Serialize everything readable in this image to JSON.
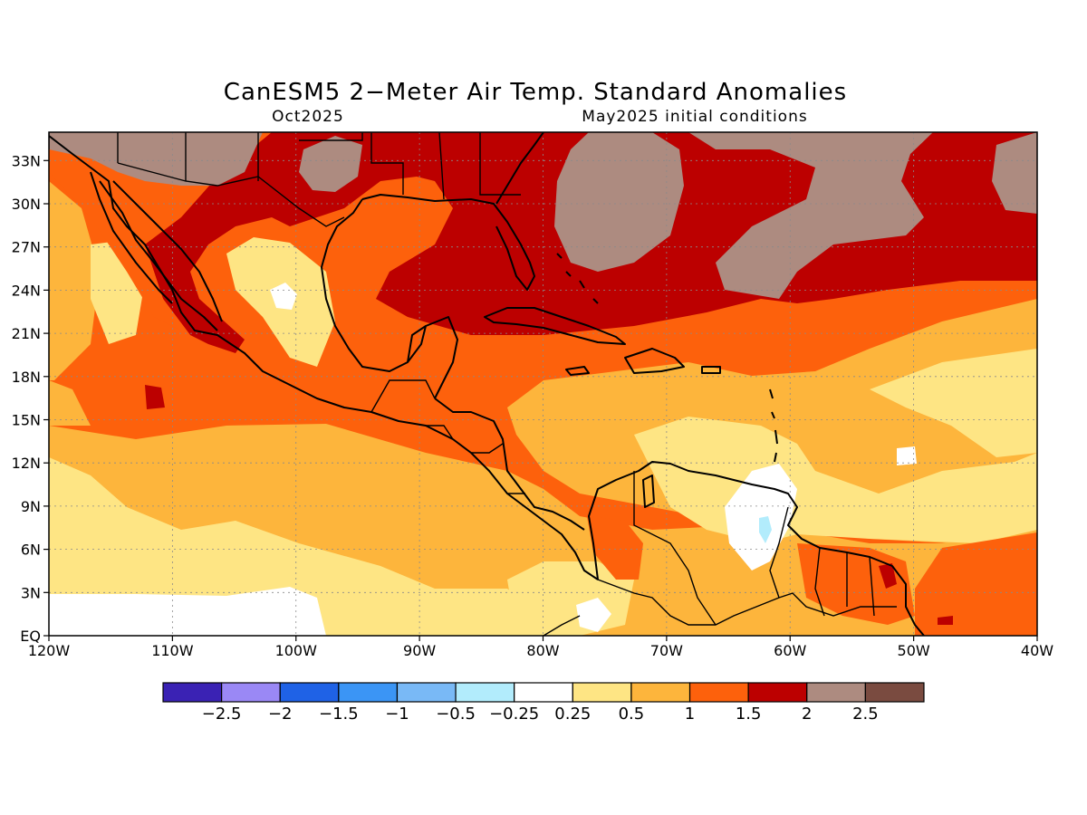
{
  "map": {
    "title": "CanESM5 2−Meter Air Temp. Standard Anomalies",
    "subtitle_left": "Oct2025",
    "subtitle_right": "May2025 initial conditions",
    "lon_ticks": [
      "120W",
      "110W",
      "100W",
      "90W",
      "80W",
      "70W",
      "60W",
      "50W",
      "40W"
    ],
    "lat_ticks": [
      "EQ",
      "3N",
      "6N",
      "9N",
      "12N",
      "15N",
      "18N",
      "21N",
      "24N",
      "27N",
      "30N",
      "33N"
    ],
    "colorbar": {
      "colors": [
        "#3a22b4",
        "#9a88f5",
        "#1f62e6",
        "#3b95f5",
        "#79b9f6",
        "#b2ecfc",
        "#ffffff",
        "#fee584",
        "#fdb53c",
        "#fd610c",
        "#bc0000",
        "#ad8b80",
        "#7a4b40"
      ],
      "labels": [
        "−2.5",
        "−2",
        "−1.5",
        "−1",
        "−0.5",
        "−0.25",
        "0.25",
        "0.5",
        "1",
        "1.5",
        "2",
        "2.5"
      ]
    }
  }
}
